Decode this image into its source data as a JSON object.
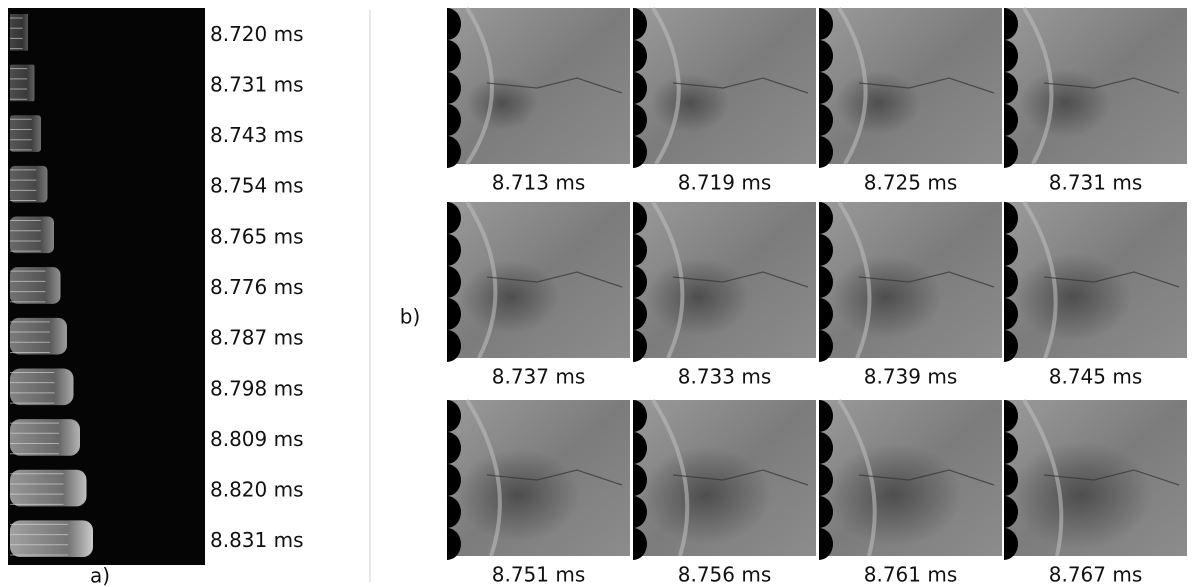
{
  "panel_a": {
    "label": "a)",
    "frames": [
      "8.720 ms",
      "8.731 ms",
      "8.743 ms",
      "8.754 ms",
      "8.765 ms",
      "8.776 ms",
      "8.787 ms",
      "8.798 ms",
      "8.809 ms",
      "8.820 ms",
      "8.831 ms"
    ]
  },
  "panel_b": {
    "label": "b)",
    "frames": [
      "8.713 ms",
      "8.719 ms",
      "8.725 ms",
      "8.731 ms",
      "8.737 ms",
      "8.733 ms",
      "8.739 ms",
      "8.745 ms",
      "8.751 ms",
      "8.756 ms",
      "8.761 ms",
      "8.767 ms"
    ]
  }
}
